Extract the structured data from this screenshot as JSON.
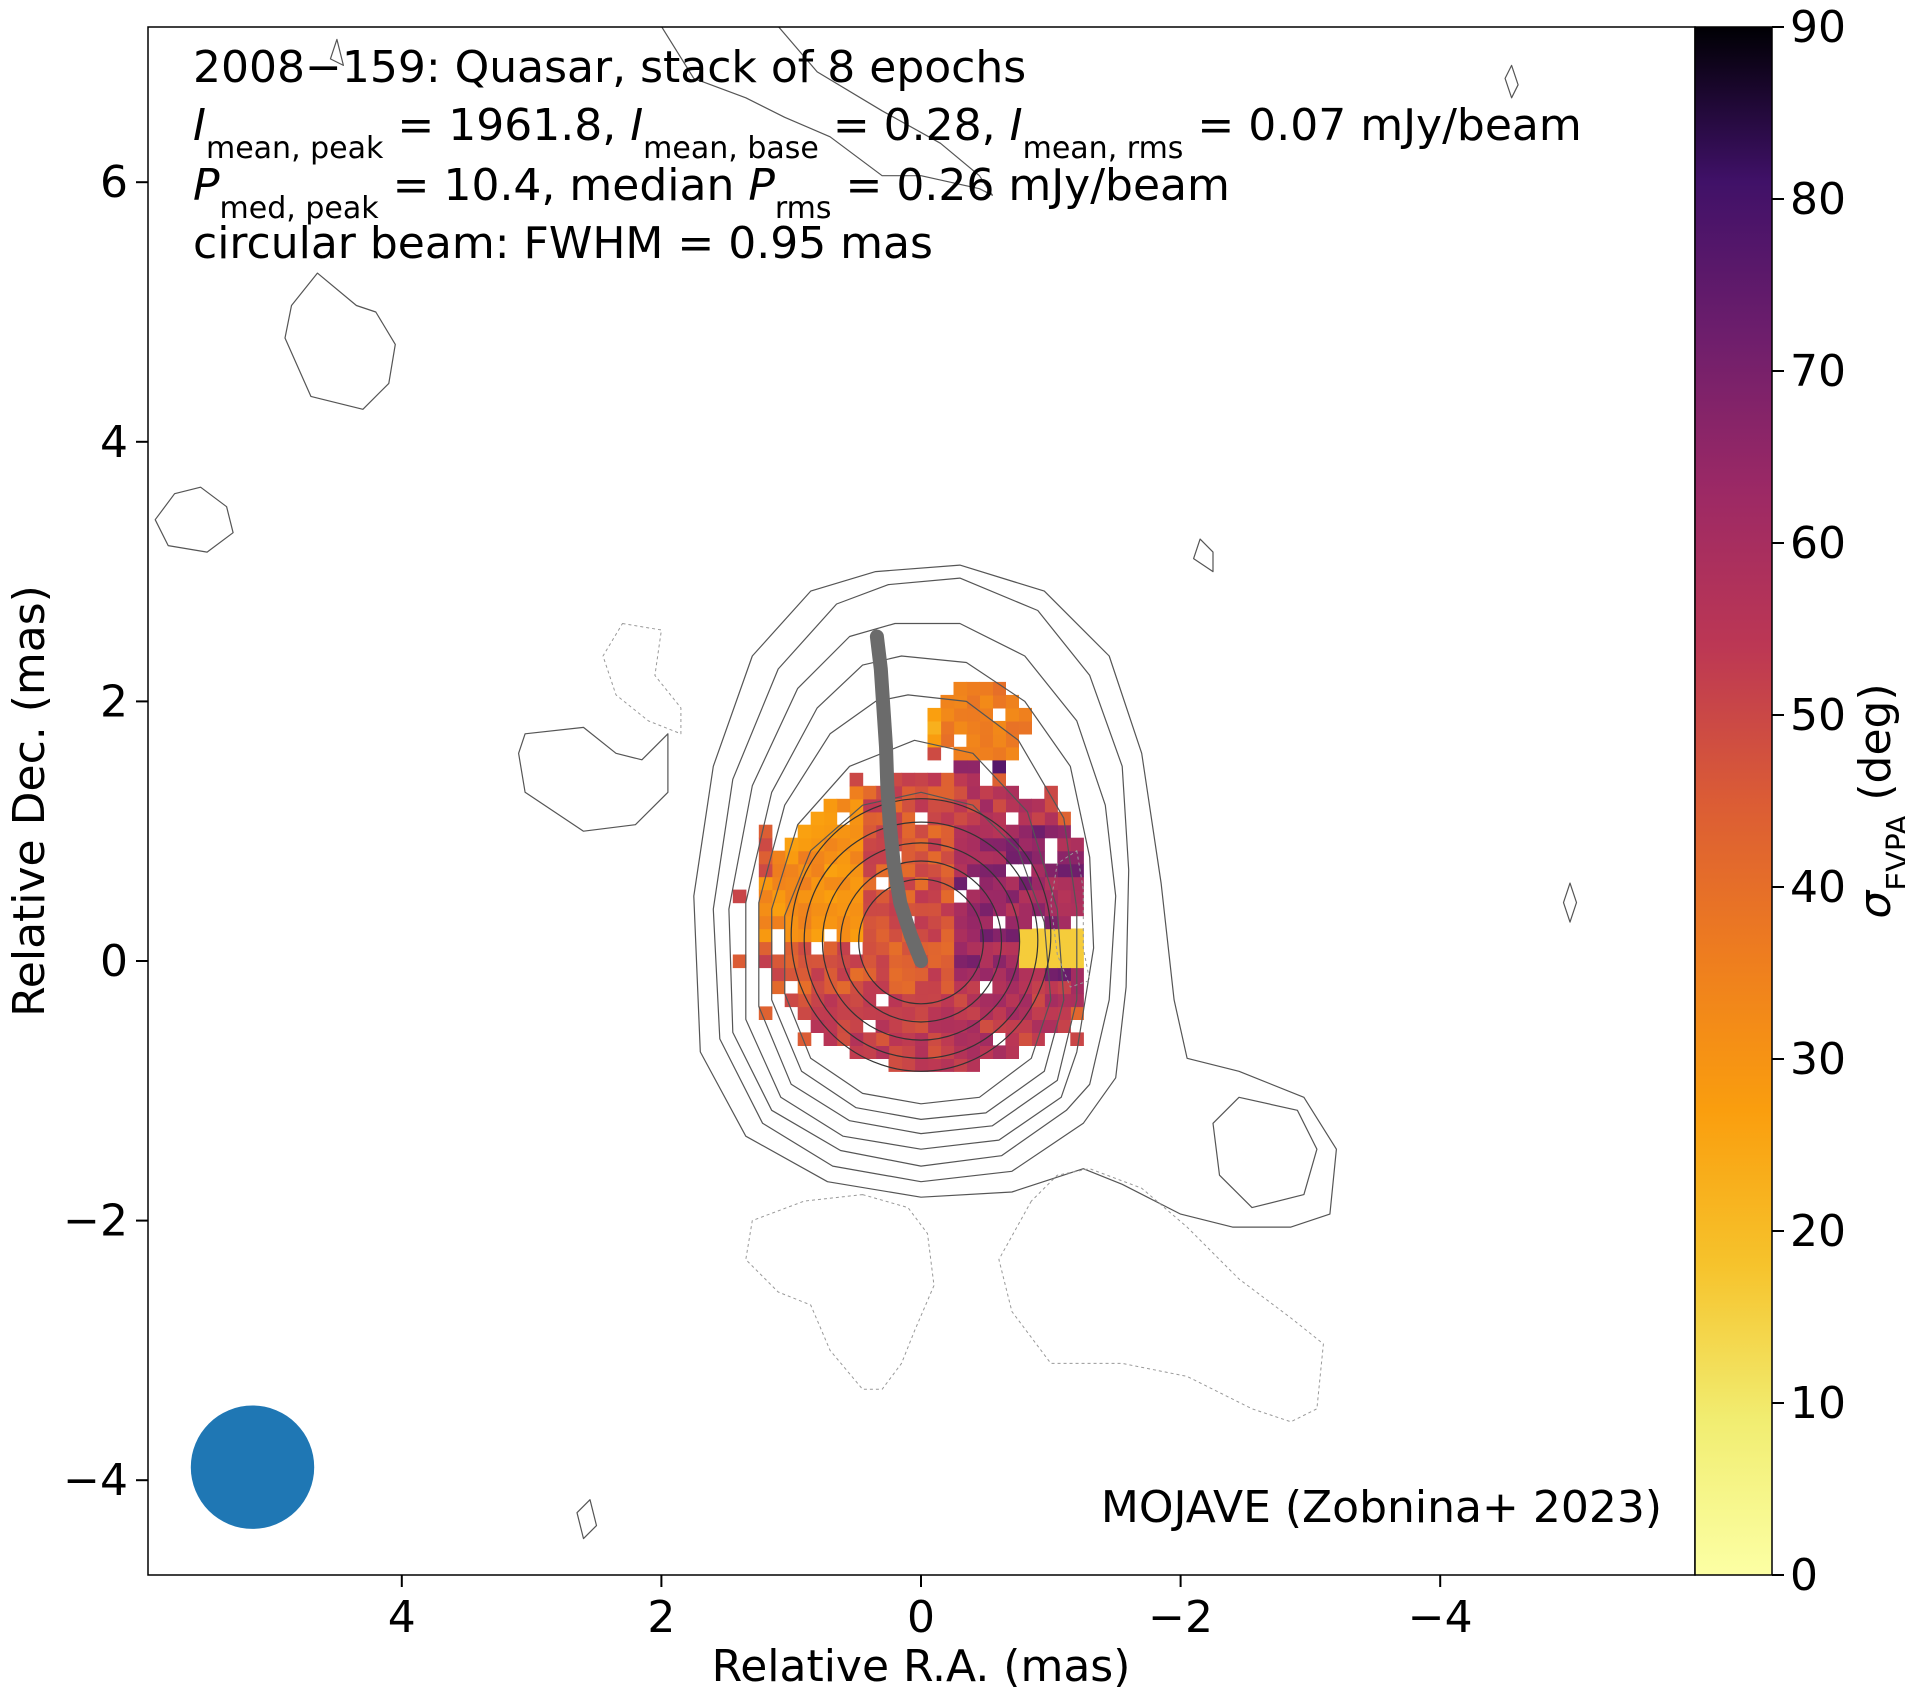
{
  "chart_data": {
    "type": "heatmap",
    "title": "2008−159: Quasar, stack of 8 epochs",
    "xlabel": "Relative R.A. (mas)",
    "ylabel": "Relative Dec. (mas)",
    "xlim": [
      5.98,
      -5.98
    ],
    "ylim": [
      -4.7,
      7.2
    ],
    "x_ticks": [
      4,
      2,
      0,
      -2,
      -4
    ],
    "x_tick_labels": [
      "4",
      "2",
      "0",
      "−2",
      "−4"
    ],
    "y_ticks": [
      -4,
      -2,
      0,
      2,
      4,
      6
    ],
    "y_tick_labels": [
      "−4",
      "−2",
      "0",
      "2",
      "4",
      "6"
    ],
    "annotation_lines": [
      {
        "parts": [
          {
            "t": "2008−159: Quasar, stack of 8 epochs"
          }
        ]
      },
      {
        "parts": [
          {
            "t": "I",
            "i": true
          },
          {
            "t": "mean, peak",
            "s": true
          },
          {
            "t": " = 1961.8, "
          },
          {
            "t": "I",
            "i": true
          },
          {
            "t": "mean, base",
            "s": true
          },
          {
            "t": " = 0.28, "
          },
          {
            "t": "I",
            "i": true
          },
          {
            "t": "mean, rms",
            "s": true
          },
          {
            "t": " = 0.07 mJy/beam"
          }
        ]
      },
      {
        "parts": [
          {
            "t": "P",
            "i": true
          },
          {
            "t": "med, peak",
            "s": true
          },
          {
            "t": " = 10.4, median "
          },
          {
            "t": "P",
            "i": true
          },
          {
            "t": "rms",
            "s": true
          },
          {
            "t": " = 0.26 mJy/beam"
          }
        ]
      },
      {
        "parts": [
          {
            "t": "circular beam: FWHM = 0.95 mas"
          }
        ]
      }
    ],
    "credit": "MOJAVE (Zobnina+ 2023)",
    "beam": {
      "center": [
        5.15,
        -3.9
      ],
      "fwhm_mas": 0.95
    },
    "colorbar": {
      "label_symbol": "σ",
      "label_sub": "EVPA",
      "label_unit": " (deg)",
      "range": [
        0,
        90
      ],
      "ticks": [
        0,
        10,
        20,
        30,
        40,
        50,
        60,
        70,
        80,
        90
      ],
      "colormap": "inferno_r"
    },
    "ridge_line": {
      "color": "#6b6b6b",
      "points": [
        [
          0.0,
          0.0
        ],
        [
          0.08,
          0.2
        ],
        [
          0.16,
          0.45
        ],
        [
          0.21,
          0.75
        ],
        [
          0.24,
          1.05
        ],
        [
          0.26,
          1.35
        ],
        [
          0.27,
          1.65
        ],
        [
          0.29,
          1.95
        ],
        [
          0.31,
          2.25
        ],
        [
          0.34,
          2.5
        ]
      ]
    },
    "core_contours": [
      {
        "cx": 0.0,
        "cy": 0.15,
        "rx": 0.48,
        "ry": 0.48
      },
      {
        "cx": 0.0,
        "cy": 0.15,
        "rx": 0.62,
        "ry": 0.62
      },
      {
        "cx": 0.0,
        "cy": 0.15,
        "rx": 0.76,
        "ry": 0.76
      },
      {
        "cx": 0.0,
        "cy": 0.16,
        "rx": 0.9,
        "ry": 0.91
      },
      {
        "cx": 0.0,
        "cy": 0.2,
        "rx": 1.0,
        "ry": 1.05
      }
    ],
    "nested_contours": [
      [
        [
          0.0,
          1.3
        ],
        [
          -0.4,
          1.2
        ],
        [
          -0.75,
          0.85
        ],
        [
          -0.95,
          0.3
        ],
        [
          -1.0,
          -0.3
        ],
        [
          -0.85,
          -0.75
        ],
        [
          -0.45,
          -1.05
        ],
        [
          0.0,
          -1.1
        ],
        [
          0.45,
          -1.02
        ],
        [
          0.85,
          -0.75
        ],
        [
          1.05,
          -0.25
        ],
        [
          1.05,
          0.35
        ],
        [
          0.85,
          0.85
        ],
        [
          0.45,
          1.2
        ]
      ],
      [
        [
          0.05,
          1.7
        ],
        [
          -0.4,
          1.6
        ],
        [
          -0.82,
          1.15
        ],
        [
          -1.05,
          0.4
        ],
        [
          -1.1,
          -0.3
        ],
        [
          -0.95,
          -0.85
        ],
        [
          -0.5,
          -1.17
        ],
        [
          0.0,
          -1.22
        ],
        [
          0.5,
          -1.13
        ],
        [
          0.92,
          -0.85
        ],
        [
          1.15,
          -0.3
        ],
        [
          1.15,
          0.4
        ],
        [
          0.95,
          1.05
        ],
        [
          0.55,
          1.5
        ]
      ],
      [
        [
          0.1,
          2.05
        ],
        [
          -0.35,
          2.0
        ],
        [
          -0.75,
          1.7
        ],
        [
          -1.1,
          1.1
        ],
        [
          -1.2,
          0.4
        ],
        [
          -1.2,
          -0.3
        ],
        [
          -1.05,
          -0.92
        ],
        [
          -0.55,
          -1.27
        ],
        [
          0.0,
          -1.33
        ],
        [
          0.55,
          -1.23
        ],
        [
          1.0,
          -0.95
        ],
        [
          1.25,
          -0.35
        ],
        [
          1.25,
          0.45
        ],
        [
          1.05,
          1.2
        ],
        [
          0.7,
          1.75
        ],
        [
          0.35,
          2.0
        ]
      ],
      [
        [
          0.15,
          2.35
        ],
        [
          -0.35,
          2.3
        ],
        [
          -0.8,
          2.0
        ],
        [
          -1.15,
          1.5
        ],
        [
          -1.3,
          0.8
        ],
        [
          -1.33,
          0.1
        ],
        [
          -1.2,
          -0.7
        ],
        [
          -1.08,
          -1.05
        ],
        [
          -0.6,
          -1.38
        ],
        [
          0.0,
          -1.45
        ],
        [
          0.6,
          -1.35
        ],
        [
          1.08,
          -1.05
        ],
        [
          1.35,
          -0.45
        ],
        [
          1.35,
          0.45
        ],
        [
          1.15,
          1.3
        ],
        [
          0.8,
          1.95
        ],
        [
          0.45,
          2.28
        ]
      ],
      [
        [
          0.2,
          2.6
        ],
        [
          -0.3,
          2.6
        ],
        [
          -0.8,
          2.35
        ],
        [
          -1.2,
          1.85
        ],
        [
          -1.42,
          1.2
        ],
        [
          -1.5,
          0.5
        ],
        [
          -1.45,
          -0.3
        ],
        [
          -1.3,
          -0.95
        ],
        [
          -1.12,
          -1.15
        ],
        [
          -0.62,
          -1.5
        ],
        [
          0.0,
          -1.58
        ],
        [
          0.62,
          -1.46
        ],
        [
          1.15,
          -1.15
        ],
        [
          1.45,
          -0.55
        ],
        [
          1.48,
          0.4
        ],
        [
          1.3,
          1.35
        ],
        [
          0.95,
          2.1
        ],
        [
          0.55,
          2.5
        ]
      ],
      [
        [
          0.25,
          2.9
        ],
        [
          -0.3,
          2.95
        ],
        [
          -0.9,
          2.7
        ],
        [
          -1.3,
          2.2
        ],
        [
          -1.55,
          1.5
        ],
        [
          -1.6,
          0.7
        ],
        [
          -1.58,
          -0.2
        ],
        [
          -1.5,
          -0.9
        ],
        [
          -1.25,
          -1.25
        ],
        [
          -0.7,
          -1.62
        ],
        [
          0.0,
          -1.7
        ],
        [
          0.68,
          -1.58
        ],
        [
          1.22,
          -1.25
        ],
        [
          1.55,
          -0.6
        ],
        [
          1.6,
          0.4
        ],
        [
          1.45,
          1.4
        ],
        [
          1.1,
          2.25
        ],
        [
          0.65,
          2.75
        ]
      ],
      [
        [
          0.35,
          3.0
        ],
        [
          -0.3,
          3.05
        ],
        [
          -0.95,
          2.85
        ],
        [
          -1.45,
          2.35
        ],
        [
          -1.7,
          1.6
        ],
        [
          -1.85,
          0.6
        ],
        [
          -1.95,
          -0.3
        ],
        [
          -2.05,
          -0.75
        ],
        [
          -2.45,
          -0.85
        ],
        [
          -2.95,
          -1.05
        ],
        [
          -3.2,
          -1.45
        ],
        [
          -3.15,
          -1.95
        ],
        [
          -2.85,
          -2.05
        ],
        [
          -2.4,
          -2.05
        ],
        [
          -2.0,
          -1.95
        ],
        [
          -1.55,
          -1.72
        ],
        [
          -1.25,
          -1.6
        ],
        [
          -0.7,
          -1.78
        ],
        [
          0.0,
          -1.82
        ],
        [
          0.72,
          -1.7
        ],
        [
          1.35,
          -1.35
        ],
        [
          1.7,
          -0.7
        ],
        [
          1.75,
          0.5
        ],
        [
          1.6,
          1.5
        ],
        [
          1.3,
          2.35
        ],
        [
          0.85,
          2.85
        ]
      ]
    ],
    "loose_contours": [
      {
        "style": "solid",
        "points": [
          [
            4.85,
            5.05
          ],
          [
            4.65,
            5.3
          ],
          [
            4.35,
            5.05
          ],
          [
            4.2,
            5.0
          ],
          [
            4.05,
            4.75
          ],
          [
            4.1,
            4.45
          ],
          [
            4.3,
            4.25
          ],
          [
            4.7,
            4.35
          ],
          [
            4.9,
            4.8
          ]
        ]
      },
      {
        "style": "solid",
        "points": [
          [
            5.75,
            3.6
          ],
          [
            5.55,
            3.65
          ],
          [
            5.35,
            3.5
          ],
          [
            5.3,
            3.3
          ],
          [
            5.5,
            3.15
          ],
          [
            5.8,
            3.2
          ],
          [
            5.9,
            3.4
          ]
        ]
      },
      {
        "style": "solid",
        "points": [
          [
            3.05,
            1.75
          ],
          [
            2.6,
            1.8
          ],
          [
            2.35,
            1.6
          ],
          [
            2.15,
            1.55
          ],
          [
            1.95,
            1.75
          ],
          [
            1.95,
            1.3
          ],
          [
            2.2,
            1.05
          ],
          [
            2.6,
            1.0
          ],
          [
            3.05,
            1.3
          ],
          [
            3.1,
            1.6
          ]
        ]
      },
      {
        "style": "solid",
        "points": [
          [
            -2.25,
            -1.25
          ],
          [
            -2.45,
            -1.05
          ],
          [
            -2.9,
            -1.15
          ],
          [
            -3.05,
            -1.45
          ],
          [
            -2.95,
            -1.8
          ],
          [
            -2.55,
            -1.9
          ],
          [
            -2.3,
            -1.65
          ]
        ]
      },
      {
        "style": "solid",
        "points": [
          [
            -2.15,
            3.25
          ],
          [
            -2.25,
            3.15
          ],
          [
            -2.25,
            3.0
          ],
          [
            -2.1,
            3.1
          ]
        ]
      },
      {
        "style": "solid",
        "points": [
          [
            -4.55,
            6.9
          ],
          [
            -4.6,
            6.75
          ],
          [
            -4.55,
            6.65
          ],
          [
            -4.5,
            6.8
          ]
        ]
      },
      {
        "style": "solid",
        "points": [
          [
            -5.0,
            0.6
          ],
          [
            -5.05,
            0.45
          ],
          [
            -5.0,
            0.3
          ],
          [
            -4.95,
            0.45
          ]
        ]
      },
      {
        "style": "solid",
        "points": [
          [
            2.55,
            -4.15
          ],
          [
            2.65,
            -4.25
          ],
          [
            2.6,
            -4.45
          ],
          [
            2.5,
            -4.35
          ]
        ]
      },
      {
        "style": "solid",
        "points": [
          [
            4.5,
            7.1
          ],
          [
            4.55,
            6.95
          ],
          [
            4.45,
            6.9
          ]
        ]
      },
      {
        "style": "solid",
        "points": [
          [
            2.0,
            7.2
          ],
          [
            1.75,
            6.8
          ],
          [
            1.35,
            6.65
          ],
          [
            1.05,
            6.5
          ],
          [
            0.7,
            6.35
          ],
          [
            0.3,
            6.05
          ],
          [
            0.0,
            6.05
          ],
          [
            -0.45,
            5.95
          ],
          [
            -0.55,
            5.9
          ],
          [
            -0.45,
            6.05
          ],
          [
            -0.15,
            6.3
          ],
          [
            0.3,
            6.55
          ],
          [
            0.8,
            6.85
          ],
          [
            1.1,
            7.2
          ]
        ]
      },
      {
        "style": "dotted",
        "points": [
          [
            2.3,
            2.6
          ],
          [
            2.0,
            2.55
          ],
          [
            2.05,
            2.2
          ],
          [
            1.85,
            1.95
          ],
          [
            1.85,
            1.75
          ],
          [
            2.1,
            1.85
          ],
          [
            2.35,
            2.05
          ],
          [
            2.45,
            2.35
          ]
        ]
      },
      {
        "style": "dotted",
        "points": [
          [
            -1.2,
            0.85
          ],
          [
            -1.25,
            0.55
          ],
          [
            -1.25,
            0.1
          ],
          [
            -1.3,
            -0.15
          ],
          [
            -1.15,
            -0.2
          ],
          [
            -1.05,
            0.05
          ],
          [
            -1.0,
            0.45
          ],
          [
            -1.05,
            0.75
          ]
        ]
      },
      {
        "style": "dotted",
        "points": [
          [
            0.45,
            -1.8
          ],
          [
            0.1,
            -1.9
          ],
          [
            -0.05,
            -2.1
          ],
          [
            -0.1,
            -2.5
          ],
          [
            0.05,
            -2.85
          ],
          [
            0.15,
            -3.1
          ],
          [
            0.3,
            -3.3
          ],
          [
            0.45,
            -3.3
          ],
          [
            0.7,
            -3.0
          ],
          [
            0.85,
            -2.65
          ],
          [
            1.1,
            -2.55
          ],
          [
            1.35,
            -2.3
          ],
          [
            1.3,
            -2.0
          ],
          [
            0.9,
            -1.85
          ]
        ]
      },
      {
        "style": "dotted",
        "points": [
          [
            -0.85,
            -1.85
          ],
          [
            -0.6,
            -2.3
          ],
          [
            -0.7,
            -2.7
          ],
          [
            -1.0,
            -3.1
          ],
          [
            -1.55,
            -3.1
          ],
          [
            -2.05,
            -3.2
          ],
          [
            -2.55,
            -3.45
          ],
          [
            -2.85,
            -3.55
          ],
          [
            -3.05,
            -3.45
          ],
          [
            -3.1,
            -2.95
          ],
          [
            -2.85,
            -2.75
          ],
          [
            -2.45,
            -2.45
          ],
          [
            -2.05,
            -2.05
          ],
          [
            -1.7,
            -1.75
          ],
          [
            -1.3,
            -1.6
          ],
          [
            -1.05,
            -1.65
          ]
        ]
      }
    ]
  }
}
